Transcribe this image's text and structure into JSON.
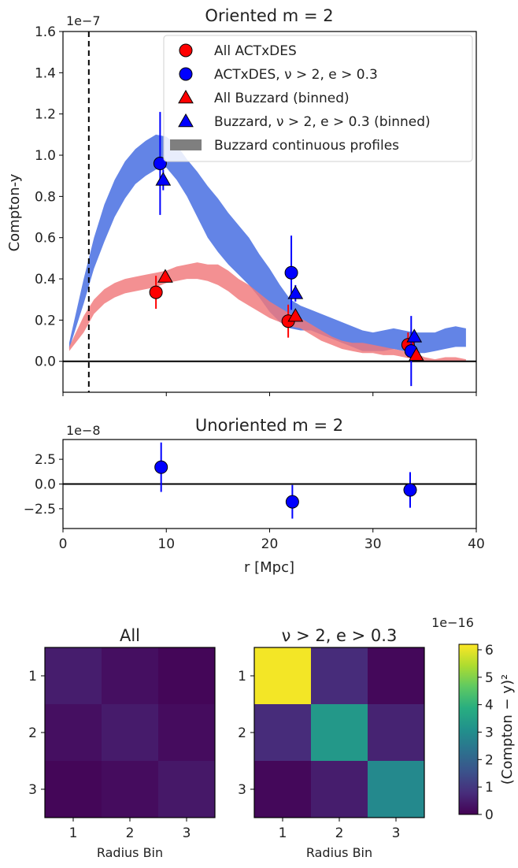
{
  "chart_data": [
    {
      "type": "line",
      "title": "Oriented m = 2",
      "xlabel": "",
      "ylabel": "Compton-y",
      "offset_text": "1e−7",
      "xlim": [
        0,
        40
      ],
      "ylim": [
        -0.15,
        1.6
      ],
      "y_scale": 1e-07,
      "yticks": [
        0.0,
        0.2,
        0.4,
        0.6,
        0.8,
        1.0,
        1.2,
        1.4,
        1.6
      ],
      "ytick_labels": [
        "0.0",
        "0.2",
        "0.4",
        "0.6",
        "0.8",
        "1.0",
        "1.2",
        "1.4",
        "1.6"
      ],
      "vline_x": 2.5,
      "hline_y": 0.0,
      "legend_position": "top-right",
      "legend": [
        {
          "label": "All ACTxDES",
          "marker": "circle",
          "color": "#ff0000"
        },
        {
          "label": "ACTxDES, ν > 2, e > 0.3",
          "marker": "circle",
          "color": "#0000ff"
        },
        {
          "label": "All Buzzard (binned)",
          "marker": "triangle",
          "color": "#ff0000"
        },
        {
          "label": "Buzzard, ν > 2, e > 0.3 (binned)",
          "marker": "triangle",
          "color": "#0000ff"
        },
        {
          "label": "Buzzard continuous profiles",
          "marker": "band",
          "color": "#7f7f7f"
        }
      ],
      "bands": [
        {
          "color": "#4169e1",
          "x": [
            0.6,
            2,
            3,
            4,
            5,
            6,
            7,
            8,
            9,
            10,
            11,
            12,
            13,
            14,
            15,
            16,
            17,
            18,
            19,
            20,
            21,
            22,
            23,
            24,
            25,
            26,
            27,
            28,
            29,
            30,
            31,
            32,
            33,
            34,
            35,
            36,
            37,
            38,
            39
          ],
          "lower": [
            0.06,
            0.28,
            0.45,
            0.58,
            0.7,
            0.79,
            0.86,
            0.9,
            0.93,
            0.94,
            0.88,
            0.8,
            0.7,
            0.6,
            0.53,
            0.47,
            0.42,
            0.37,
            0.31,
            0.24,
            0.19,
            0.16,
            0.15,
            0.15,
            0.13,
            0.11,
            0.09,
            0.07,
            0.05,
            0.05,
            0.05,
            0.06,
            0.05,
            0.04,
            0.04,
            0.05,
            0.06,
            0.07,
            0.07
          ],
          "upper": [
            0.09,
            0.4,
            0.6,
            0.76,
            0.88,
            0.97,
            1.03,
            1.07,
            1.1,
            1.09,
            1.05,
            0.98,
            0.92,
            0.85,
            0.79,
            0.72,
            0.66,
            0.6,
            0.52,
            0.45,
            0.37,
            0.3,
            0.27,
            0.25,
            0.23,
            0.21,
            0.19,
            0.17,
            0.15,
            0.14,
            0.15,
            0.16,
            0.15,
            0.14,
            0.14,
            0.14,
            0.16,
            0.17,
            0.16
          ]
        },
        {
          "color": "#f0787a",
          "x": [
            0.6,
            2,
            3,
            4,
            5,
            6,
            7,
            8,
            9,
            10,
            11,
            12,
            13,
            14,
            15,
            16,
            17,
            18,
            19,
            20,
            21,
            22,
            23,
            24,
            25,
            26,
            27,
            28,
            29,
            30,
            31,
            32,
            33,
            34,
            35,
            36,
            37,
            38,
            39
          ],
          "lower": [
            0.05,
            0.14,
            0.23,
            0.28,
            0.31,
            0.33,
            0.34,
            0.35,
            0.36,
            0.38,
            0.39,
            0.4,
            0.4,
            0.39,
            0.37,
            0.34,
            0.3,
            0.27,
            0.24,
            0.21,
            0.19,
            0.17,
            0.16,
            0.13,
            0.1,
            0.08,
            0.06,
            0.05,
            0.04,
            0.04,
            0.03,
            0.03,
            0.02,
            0.01,
            0.0,
            0.0,
            0.0,
            0.0,
            0.0
          ],
          "upper": [
            0.07,
            0.22,
            0.3,
            0.35,
            0.38,
            0.4,
            0.41,
            0.42,
            0.43,
            0.44,
            0.46,
            0.47,
            0.48,
            0.47,
            0.47,
            0.44,
            0.4,
            0.37,
            0.33,
            0.29,
            0.26,
            0.23,
            0.21,
            0.18,
            0.15,
            0.12,
            0.1,
            0.09,
            0.09,
            0.08,
            0.07,
            0.06,
            0.05,
            0.04,
            0.02,
            0.01,
            0.02,
            0.02,
            0.01
          ]
        }
      ],
      "points": [
        {
          "series": "All ACTxDES",
          "marker": "circle",
          "color": "#ff0000",
          "x": [
            9.0,
            21.8,
            33.4
          ],
          "y": [
            0.335,
            0.195,
            0.08
          ],
          "yerr": [
            0.08,
            0.08,
            0.06
          ]
        },
        {
          "series": "ACTxDES, ν > 2, e > 0.3",
          "marker": "circle",
          "color": "#0000ff",
          "x": [
            9.4,
            22.1,
            33.7
          ],
          "y": [
            0.96,
            0.43,
            0.05
          ],
          "yerr": [
            0.25,
            0.18,
            0.17
          ]
        },
        {
          "series": "All Buzzard (binned)",
          "marker": "triangle",
          "color": "#ff0000",
          "x": [
            9.9,
            22.5,
            34.2
          ],
          "y": [
            0.41,
            0.22,
            0.03
          ],
          "yerr": [
            0.0,
            0.0,
            0.0
          ]
        },
        {
          "series": "Buzzard, ν > 2, e > 0.3 (binned)",
          "marker": "triangle",
          "color": "#0000ff",
          "x": [
            9.7,
            22.5,
            34.0
          ],
          "y": [
            0.88,
            0.33,
            0.12
          ],
          "yerr": [
            0.05,
            0.04,
            0.03
          ]
        }
      ]
    },
    {
      "type": "scatter",
      "title": "Unoriented m = 2",
      "xlabel": "r [Mpc]",
      "ylabel": "",
      "offset_text": "1e−8",
      "xlim": [
        0,
        40
      ],
      "ylim": [
        -4.5,
        4.5
      ],
      "y_scale": 1e-08,
      "xticks": [
        0,
        10,
        20,
        30,
        40
      ],
      "xtick_labels": [
        "0",
        "10",
        "20",
        "30",
        "40"
      ],
      "yticks": [
        -2.5,
        0.0,
        2.5
      ],
      "ytick_labels": [
        "−2.5",
        "0.0",
        "2.5"
      ],
      "hline_y": 0.0,
      "points": [
        {
          "marker": "circle",
          "color": "#0000ff",
          "x": [
            9.5,
            22.2,
            33.6
          ],
          "y": [
            1.7,
            -1.8,
            -0.6
          ],
          "yerr": [
            2.5,
            1.7,
            1.8
          ]
        }
      ]
    },
    {
      "type": "heatmap",
      "title": "All",
      "xlabel": "Radius Bin",
      "ylabel": "",
      "xtick_labels": [
        "1",
        "2",
        "3"
      ],
      "ytick_labels": [
        "1",
        "2",
        "3"
      ],
      "values": [
        [
          0.5,
          0.25,
          0.08
        ],
        [
          0.25,
          0.45,
          0.2
        ],
        [
          0.08,
          0.2,
          0.4
        ]
      ],
      "vmin": 0,
      "vmax": 6.2
    },
    {
      "type": "heatmap",
      "title": "ν > 2, e > 0.3",
      "xlabel": "Radius Bin",
      "ylabel": "",
      "xtick_labels": [
        "1",
        "2",
        "3"
      ],
      "ytick_labels": [
        "1",
        "2",
        "3"
      ],
      "values": [
        [
          6.1,
          0.75,
          0.12
        ],
        [
          0.75,
          3.3,
          0.6
        ],
        [
          0.12,
          0.5,
          2.9
        ]
      ],
      "vmin": 0,
      "vmax": 6.2
    }
  ],
  "colorbar": {
    "label": "(Compton − y)²",
    "offset_text": "1e−16",
    "ticks": [
      0,
      1,
      2,
      3,
      4,
      5,
      6
    ],
    "tick_labels": [
      "0",
      "1",
      "2",
      "3",
      "4",
      "5",
      "6"
    ],
    "vmin": 0,
    "vmax": 6.2,
    "colormap": "viridis"
  }
}
